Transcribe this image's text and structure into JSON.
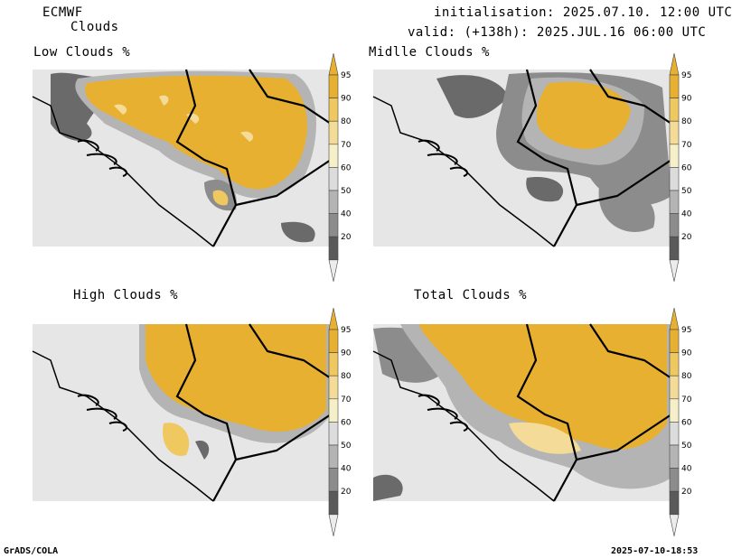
{
  "header": {
    "model": "ECMWF",
    "parameter": "Clouds",
    "init": "initialisation: 2025.07.10. 12:00 UTC",
    "valid": "valid: (+138h): 2025.JUL.16 06:00 UTC"
  },
  "panels": [
    {
      "title": "Low Clouds %"
    },
    {
      "title": "Midlle Clouds %"
    },
    {
      "title": "High Clouds %"
    },
    {
      "title": "Total Clouds %"
    }
  ],
  "colorbar": {
    "levels": [
      "95",
      "90",
      "80",
      "70",
      "60",
      "50",
      "40",
      "20"
    ],
    "colors": {
      "c95": "#e8b030",
      "c90": "#f0c860",
      "c80": "#f4dc98",
      "c70": "#f6f0c8",
      "c60": "#dcdcdc",
      "c50": "#b4b4b4",
      "c40": "#8c8c8c",
      "c20": "#5a5a5a",
      "below": "#ececec"
    }
  },
  "footer": {
    "left": "GrADS/COLA",
    "right": "2025-07-10-18:53"
  }
}
